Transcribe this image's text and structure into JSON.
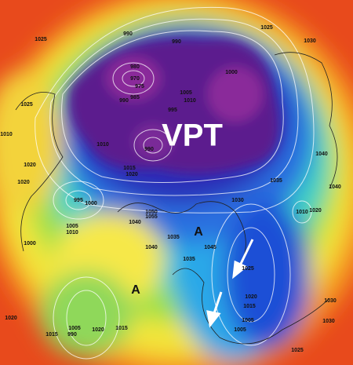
{
  "map": {
    "watermark": "VPT",
    "high_markers": [
      "A",
      "A"
    ],
    "isobar_labels": [
      "1025",
      "990",
      "990",
      "1025",
      "1030",
      "980",
      "970",
      "975",
      "985",
      "990",
      "995",
      "1000",
      "1005",
      "1010",
      "1010",
      "1015",
      "1020",
      "990",
      "1025",
      "1010",
      "1020",
      "1020",
      "995",
      "1000",
      "1005",
      "1010",
      "1000",
      "1050",
      "1055",
      "1040",
      "1035",
      "1040",
      "1045",
      "1035",
      "1030",
      "1035",
      "1040",
      "1040",
      "1010",
      "1020",
      "1025",
      "1020",
      "1015",
      "1005",
      "1030",
      "1030",
      "1025",
      "1020",
      "1005",
      "990",
      "1015",
      "1020",
      "1015",
      "1005"
    ]
  }
}
